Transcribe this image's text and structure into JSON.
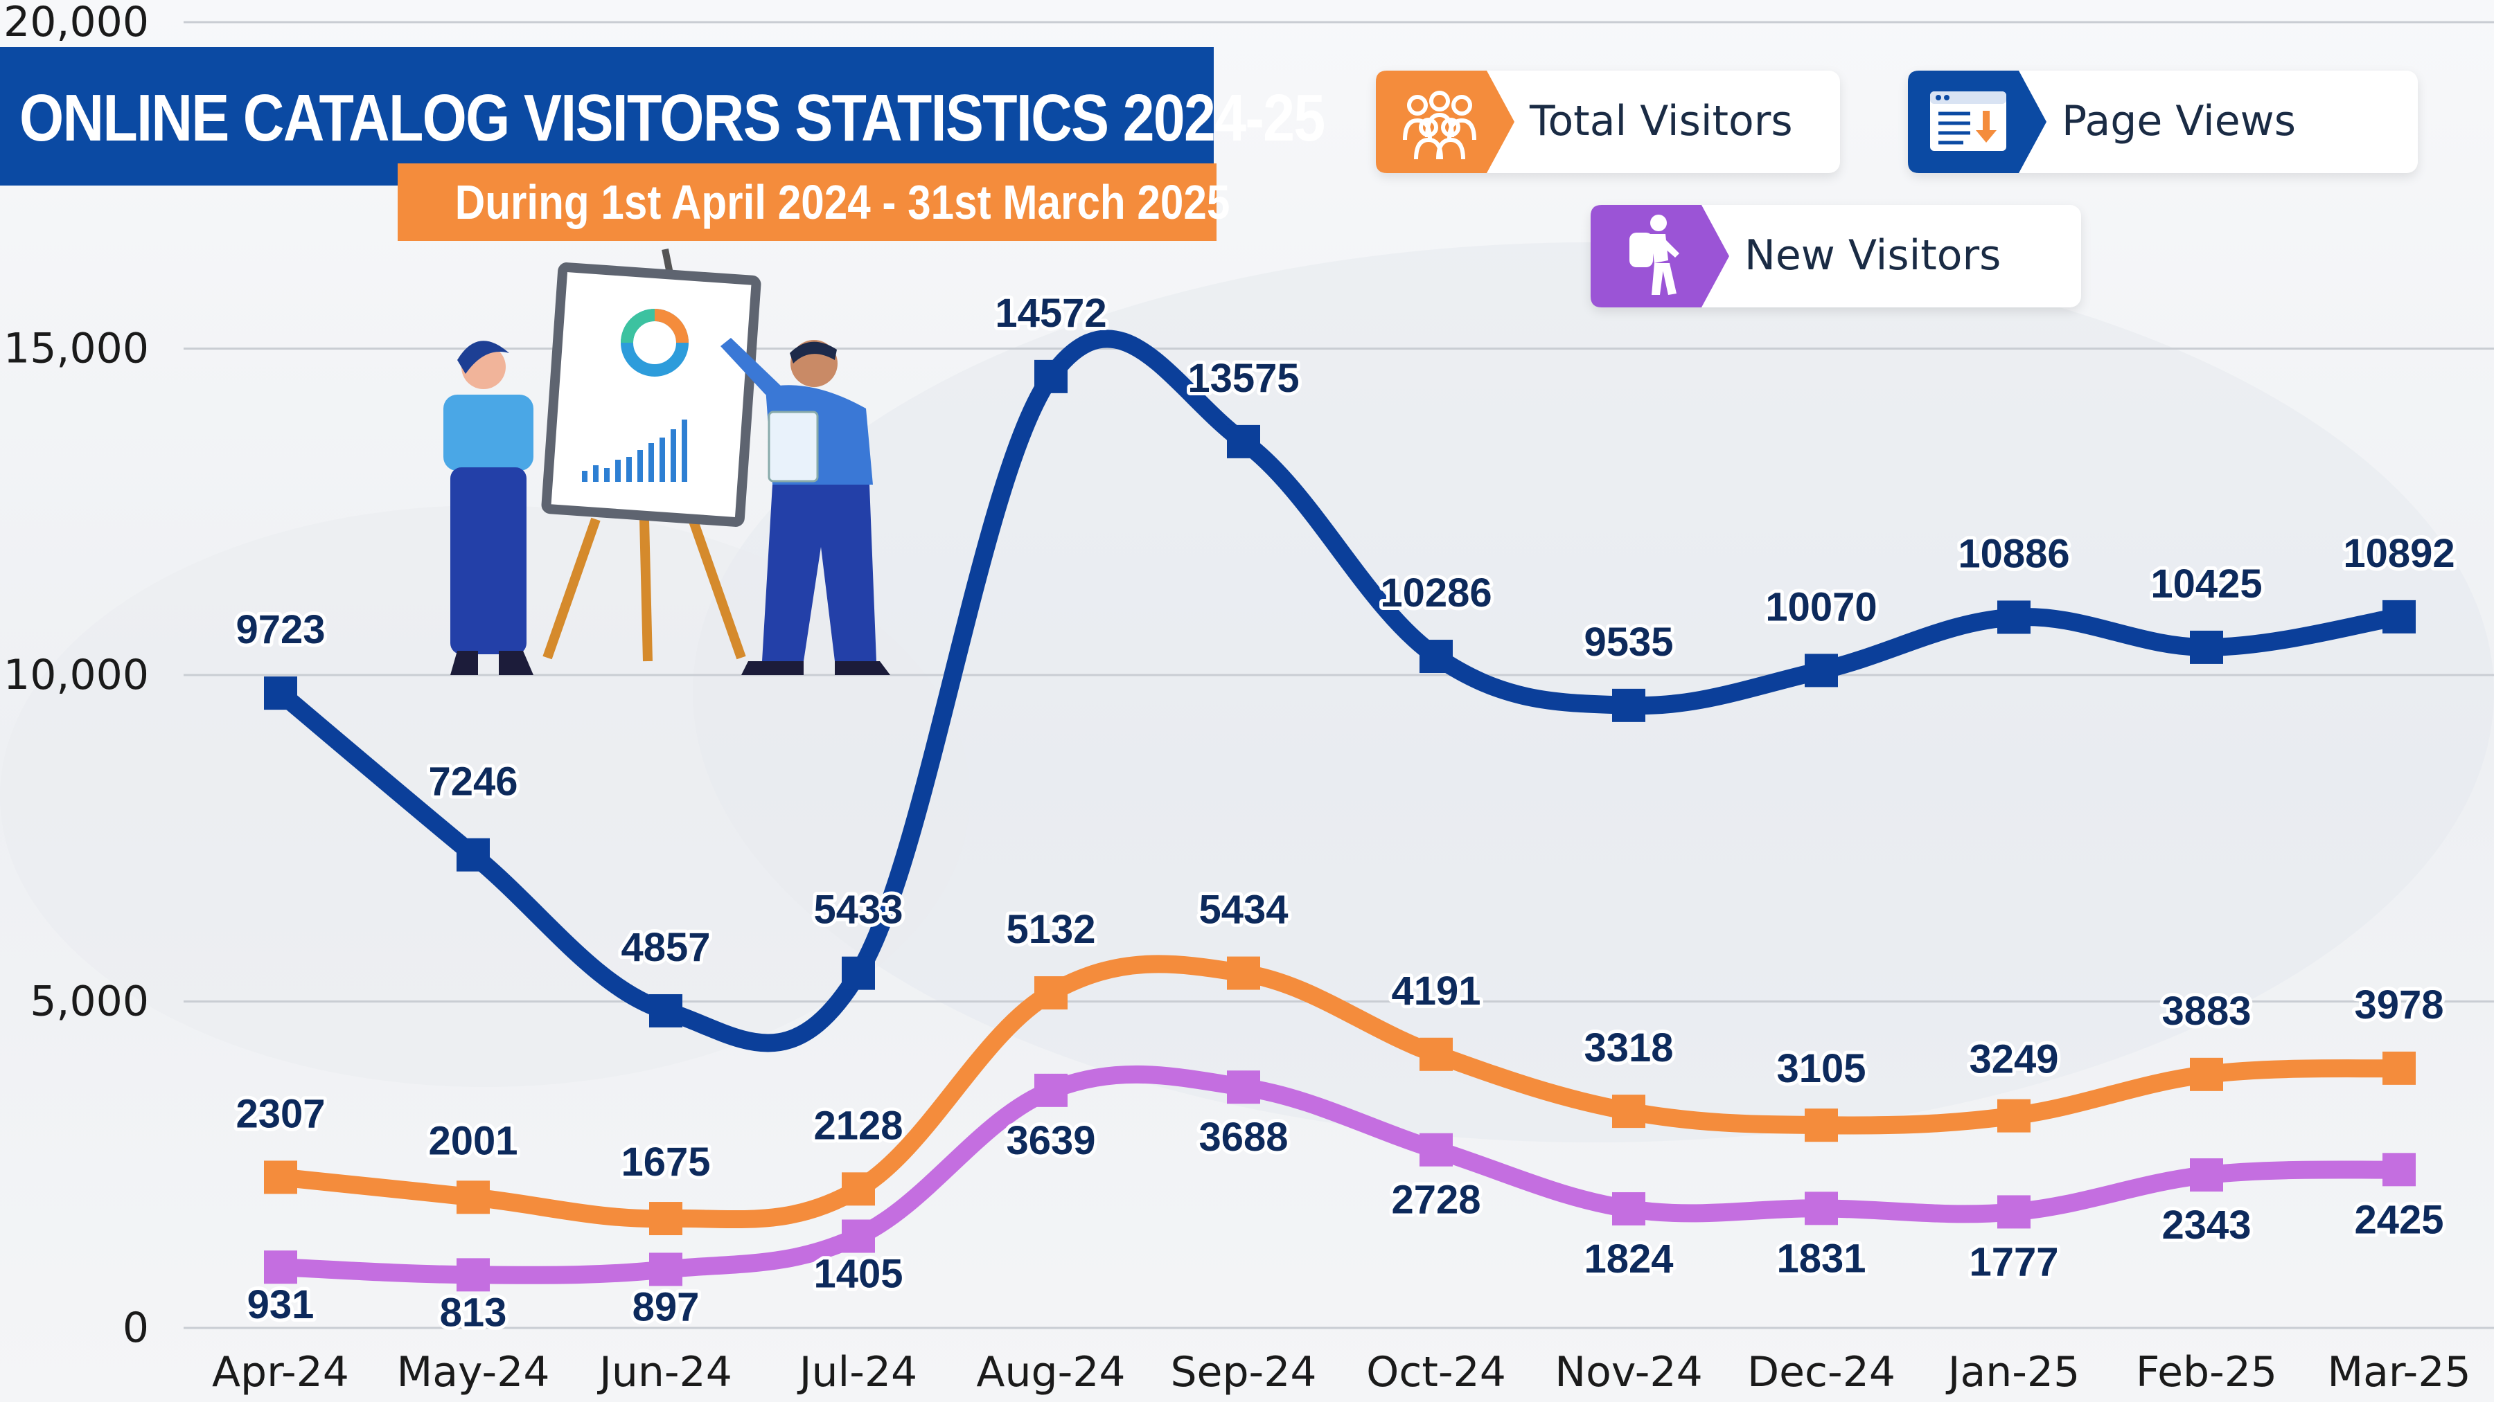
{
  "header": {
    "title": "ONLINE CATALOG VISITORS STATISTICS 2024-25",
    "subtitle": "During 1st April 2024 - 31st March 2025"
  },
  "legend": [
    {
      "label": "Total Visitors",
      "color": "#f48c3c",
      "icon": "people-group-icon"
    },
    {
      "label": "Page Views",
      "color": "#0b4aa3",
      "icon": "browser-download-icon"
    },
    {
      "label": "New Visitors",
      "color": "#9b54d6",
      "icon": "hiker-icon"
    }
  ],
  "chart_data": {
    "type": "line",
    "title": "ONLINE CATALOG VISITORS STATISTICS 2024-25",
    "subtitle": "During 1st April 2024 - 31st March 2025",
    "xlabel": "",
    "ylabel": "",
    "categories": [
      "Apr-24",
      "May-24",
      "Jun-24",
      "Jul-24",
      "Aug-24",
      "Sep-24",
      "Oct-24",
      "Nov-24",
      "Dec-24",
      "Jan-25",
      "Feb-25",
      "Mar-25"
    ],
    "ylim": [
      0,
      20000
    ],
    "yticks": [
      0,
      5000,
      10000,
      15000,
      20000
    ],
    "ytick_labels": [
      "0",
      "5,000",
      "10,000",
      "15,000",
      "20,000"
    ],
    "grid": true,
    "legend_position": "top-right",
    "series": [
      {
        "name": "Page Views",
        "color": "#0b3f9a",
        "values": [
          9723,
          7246,
          4857,
          5433,
          14572,
          13575,
          10286,
          9535,
          10070,
          10886,
          10425,
          10892
        ]
      },
      {
        "name": "Total Visitors",
        "color": "#f48c3c",
        "values": [
          2307,
          2001,
          1675,
          2128,
          5132,
          5434,
          4191,
          3318,
          3105,
          3249,
          3883,
          3978
        ]
      },
      {
        "name": "New Visitors",
        "color": "#c46ee0",
        "values": [
          931,
          813,
          897,
          1405,
          3639,
          3688,
          2728,
          1824,
          1831,
          1777,
          2343,
          2425
        ]
      }
    ]
  }
}
